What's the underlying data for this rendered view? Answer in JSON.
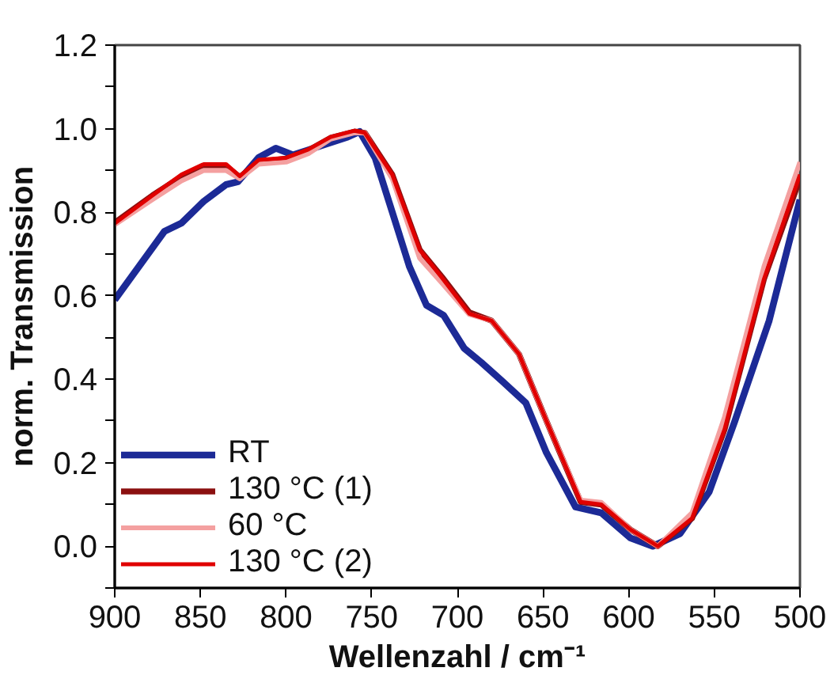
{
  "chart_data": {
    "type": "line",
    "xlabel": "Wellenzahl / cm⁻¹",
    "ylabel": "norm. Transmission",
    "xlim": [
      900,
      500
    ],
    "ylim": [
      -0.1,
      1.2
    ],
    "xticks": [
      900,
      850,
      800,
      750,
      700,
      650,
      600,
      550,
      500
    ],
    "yticks": [
      {
        "value": -0.1,
        "label": null
      },
      {
        "value": 0,
        "label": "0.0"
      },
      {
        "value": 0.1,
        "label": null
      },
      0.2,
      {
        "value": 0.3,
        "label": null
      },
      0.4,
      {
        "value": 0.5,
        "label": null
      },
      0.6,
      {
        "value": 0.7,
        "label": null
      },
      0.8,
      {
        "value": 0.9,
        "label": null
      },
      {
        "value": 1,
        "label": "1.0"
      },
      {
        "value": 1.1,
        "label": null
      },
      1.2
    ],
    "grid": false,
    "legend": "bottom left",
    "line_style": "solid",
    "marker": "none",
    "series": [
      {
        "name": "RT",
        "color": "#1c2a96",
        "x": [
          900,
          871,
          861,
          848,
          835,
          828,
          816,
          806,
          796,
          781,
          764,
          757,
          748,
          738,
          728,
          718,
          708,
          696,
          686,
          674,
          660,
          648,
          631,
          616,
          599,
          586,
          570,
          553,
          538,
          518,
          500
        ],
        "values": [
          0.59,
          0.754,
          0.774,
          0.826,
          0.866,
          0.873,
          0.931,
          0.953,
          0.937,
          0.957,
          0.98,
          0.993,
          0.93,
          0.8,
          0.67,
          0.577,
          0.553,
          0.474,
          0.44,
          0.396,
          0.343,
          0.224,
          0.094,
          0.08,
          0.02,
          0.0,
          0.03,
          0.13,
          0.3,
          0.54,
          0.83
        ]
      },
      {
        "name": "130 °C (1)",
        "color": "#8b1010",
        "x": [
          900,
          878,
          861,
          848,
          835,
          827,
          816,
          800,
          787,
          774,
          760,
          754,
          738,
          722,
          709,
          693,
          680,
          664,
          648,
          628,
          616,
          599,
          583,
          563,
          544,
          521,
          500
        ],
        "values": [
          0.775,
          0.84,
          0.885,
          0.91,
          0.91,
          0.884,
          0.92,
          0.928,
          0.948,
          0.978,
          0.993,
          0.99,
          0.89,
          0.71,
          0.645,
          0.56,
          0.54,
          0.46,
          0.3,
          0.106,
          0.1,
          0.04,
          0.0,
          0.067,
          0.28,
          0.64,
          0.88
        ]
      },
      {
        "name": "60 °C",
        "color": "#f4a0a0",
        "x": [
          900,
          878,
          861,
          848,
          835,
          827,
          816,
          800,
          787,
          774,
          760,
          754,
          738,
          722,
          709,
          693,
          680,
          664,
          648,
          628,
          616,
          599,
          583,
          563,
          544,
          521,
          500
        ],
        "values": [
          0.77,
          0.83,
          0.875,
          0.9,
          0.9,
          0.88,
          0.915,
          0.92,
          0.94,
          0.975,
          0.99,
          0.99,
          0.88,
          0.69,
          0.63,
          0.555,
          0.54,
          0.46,
          0.3,
          0.11,
          0.105,
          0.04,
          0.0,
          0.08,
          0.31,
          0.67,
          0.92
        ]
      },
      {
        "name": "130 °C (2)",
        "color": "#e00000",
        "x": [
          900,
          878,
          861,
          848,
          835,
          827,
          816,
          800,
          787,
          774,
          760,
          754,
          738,
          722,
          709,
          693,
          680,
          664,
          648,
          628,
          616,
          599,
          583,
          563,
          544,
          521,
          500
        ],
        "values": [
          0.773,
          0.84,
          0.89,
          0.915,
          0.915,
          0.886,
          0.925,
          0.93,
          0.95,
          0.98,
          0.995,
          0.99,
          0.89,
          0.71,
          0.643,
          0.557,
          0.54,
          0.46,
          0.3,
          0.106,
          0.1,
          0.04,
          0.0,
          0.067,
          0.28,
          0.64,
          0.89
        ]
      }
    ]
  }
}
